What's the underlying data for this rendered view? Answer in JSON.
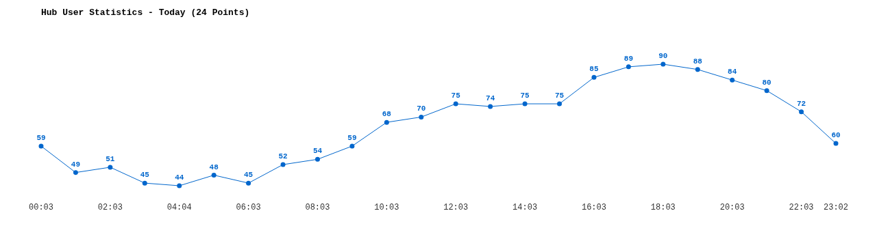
{
  "chart_data": {
    "type": "line",
    "title": "Hub User Statistics - Today (24 Points)",
    "categories": [
      "00:03",
      null,
      "02:03",
      null,
      "04:04",
      null,
      "06:03",
      null,
      "08:03",
      null,
      "10:03",
      null,
      "12:03",
      null,
      "14:03",
      null,
      "16:03",
      null,
      "18:03",
      null,
      "20:03",
      null,
      "22:03",
      "23:02"
    ],
    "series": [
      {
        "color": "#0066cc",
        "values": [
          59,
          49,
          51,
          45,
          44,
          48,
          45,
          52,
          54,
          59,
          68,
          70,
          75,
          74,
          75,
          75,
          85,
          89,
          90,
          88,
          84,
          80,
          72,
          60
        ]
      }
    ],
    "data_labels": true,
    "marker": "circle",
    "line_style": "solid"
  }
}
